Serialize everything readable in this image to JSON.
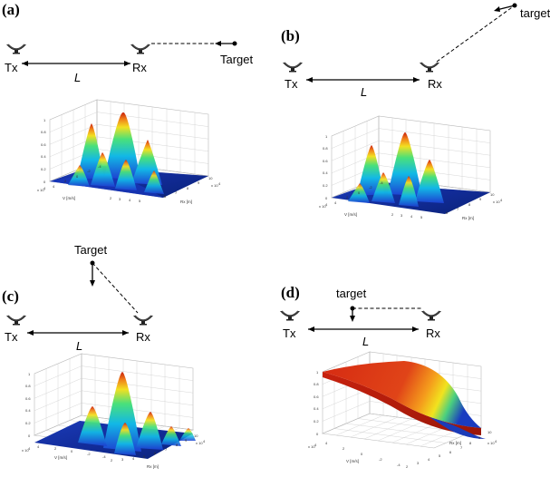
{
  "panels": [
    {
      "id": "a",
      "label": "(a)",
      "tx": "Tx",
      "rx": "Rx",
      "baseline": "L",
      "target": "Target",
      "z_ticks": [
        "1",
        "0.8",
        "0.6",
        "0.4",
        "0.2",
        "0"
      ],
      "v_ticks": [
        "4",
        "2",
        "0",
        "-2",
        "-4"
      ],
      "r_ticks": [
        "2",
        "3",
        "4",
        "5",
        "6",
        "7",
        "8",
        "9",
        "10"
      ],
      "v_axis": "V [m/s]",
      "r_axis": "Rx [m]",
      "v_exp": "x 10",
      "r_exp": "x 10",
      "exp_v": "4",
      "exp_r": "4"
    },
    {
      "id": "b",
      "label": "(b)",
      "tx": "Tx",
      "rx": "Rx",
      "baseline": "L",
      "target": "target",
      "z_ticks": [
        "1",
        "0.8",
        "0.6",
        "0.4",
        "0.2",
        "0"
      ],
      "v_ticks": [
        "4",
        "2",
        "0",
        "-2",
        "-4"
      ],
      "r_ticks": [
        "2",
        "3",
        "4",
        "5",
        "6",
        "7",
        "8",
        "9",
        "10"
      ],
      "v_axis": "V [m/s]",
      "r_axis": "Rx [m]",
      "v_exp": "x 10",
      "r_exp": "x 10",
      "exp_v": "4",
      "exp_r": "4"
    },
    {
      "id": "c",
      "label": "(c)",
      "tx": "Tx",
      "rx": "Rx",
      "baseline": "L",
      "target": "Target",
      "z_ticks": [
        "1",
        "0.8",
        "0.6",
        "0.4",
        "0.2",
        "0"
      ],
      "v_ticks": [
        "4",
        "2",
        "0",
        "-2",
        "-4"
      ],
      "r_ticks": [
        "2",
        "3",
        "4",
        "5",
        "6",
        "7",
        "8",
        "9",
        "10"
      ],
      "v_axis": "V [m/s]",
      "r_axis": "Rx [m]",
      "v_exp": "x 10",
      "r_exp": "x 10",
      "exp_v": "4",
      "exp_r": "4"
    },
    {
      "id": "d",
      "label": "(d)",
      "tx": "Tx",
      "rx": "Rx",
      "baseline": "L",
      "target": "target",
      "z_ticks": [
        "1",
        "0.8",
        "0.6",
        "0.4",
        "0.2",
        "0"
      ],
      "v_ticks": [
        "4",
        "2",
        "0",
        "-2",
        "-4"
      ],
      "r_ticks": [
        "2",
        "3",
        "4",
        "5",
        "6",
        "7",
        "8",
        "9",
        "10"
      ],
      "v_axis": "V [m/s]",
      "r_axis": "Rx [m]",
      "v_exp": "x 10",
      "r_exp": "x 10",
      "exp_v": "4",
      "exp_r": "4"
    }
  ],
  "colors": {
    "surface_low": "#0a2a9e",
    "surface_high": "#c81e0a",
    "grid": "#b8b8b8"
  }
}
